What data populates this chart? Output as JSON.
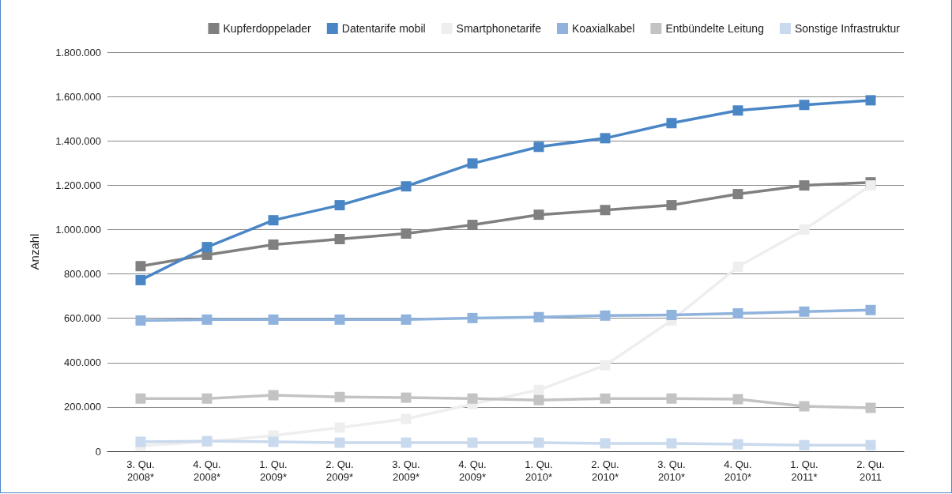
{
  "chart_data": {
    "type": "line",
    "ylabel": "Anzahl",
    "categories": [
      "3. Qu.\n2008*",
      "4. Qu.\n2008*",
      "1. Qu.\n2009*",
      "2. Qu.\n2009*",
      "3. Qu.\n2009*",
      "4. Qu.\n2009*",
      "1. Qu.\n2010*",
      "2. Qu.\n2010*",
      "3. Qu.\n2010*",
      "4. Qu.\n2010*",
      "1. Qu.\n2011*",
      "2. Qu.\n2011"
    ],
    "series": [
      {
        "name": "Kupferdoppelader",
        "color": "#808080",
        "values": [
          835000,
          886000,
          932000,
          957000,
          982000,
          1021000,
          1067000,
          1088000,
          1110000,
          1160000,
          1199000,
          1213000
        ]
      },
      {
        "name": "Datentarife mobil",
        "color": "#4a86c5",
        "values": [
          772000,
          921000,
          1042000,
          1110000,
          1195000,
          1298000,
          1373000,
          1412000,
          1480000,
          1537000,
          1562000,
          1583000
        ]
      },
      {
        "name": "Smartphonetarife",
        "color": "#eeeeee",
        "values": [
          25000,
          43000,
          71000,
          107000,
          146000,
          213000,
          277000,
          388000,
          590000,
          832000,
          1000000,
          1199000
        ]
      },
      {
        "name": "Koaxialkabel",
        "color": "#8fb3dc",
        "values": [
          590000,
          594000,
          594000,
          594000,
          594000,
          601000,
          605000,
          612000,
          615000,
          622000,
          630000,
          637000
        ]
      },
      {
        "name": "Entbündelte Leitung",
        "color": "#c3c3c3",
        "values": [
          238000,
          238000,
          253000,
          245000,
          242000,
          238000,
          231000,
          238000,
          238000,
          235000,
          203000,
          196000
        ]
      },
      {
        "name": "Sonstige Infrastruktur",
        "color": "#c9d9ee",
        "values": [
          43000,
          46000,
          43000,
          39000,
          39000,
          39000,
          39000,
          36000,
          36000,
          32000,
          28000,
          28000
        ]
      }
    ],
    "ylim": [
      0,
      1800000
    ],
    "yticks": [
      0,
      {
        "value": 200000,
        "label": "200.000"
      },
      {
        "value": 400000,
        "label": "400.000"
      },
      {
        "value": 600000,
        "label": "600.000"
      },
      {
        "value": 800000,
        "label": "800.000"
      },
      {
        "value": 1000000,
        "label": "1.000.000"
      },
      {
        "value": 1200000,
        "label": "1.200.000"
      },
      {
        "value": 1400000,
        "label": "1.400.000"
      },
      {
        "value": 1600000,
        "label": "1.600.000"
      },
      {
        "value": 1800000,
        "label": "1.800.000"
      }
    ],
    "grid": "y",
    "legend": "top right",
    "marker": "square",
    "line_style": "solid"
  }
}
